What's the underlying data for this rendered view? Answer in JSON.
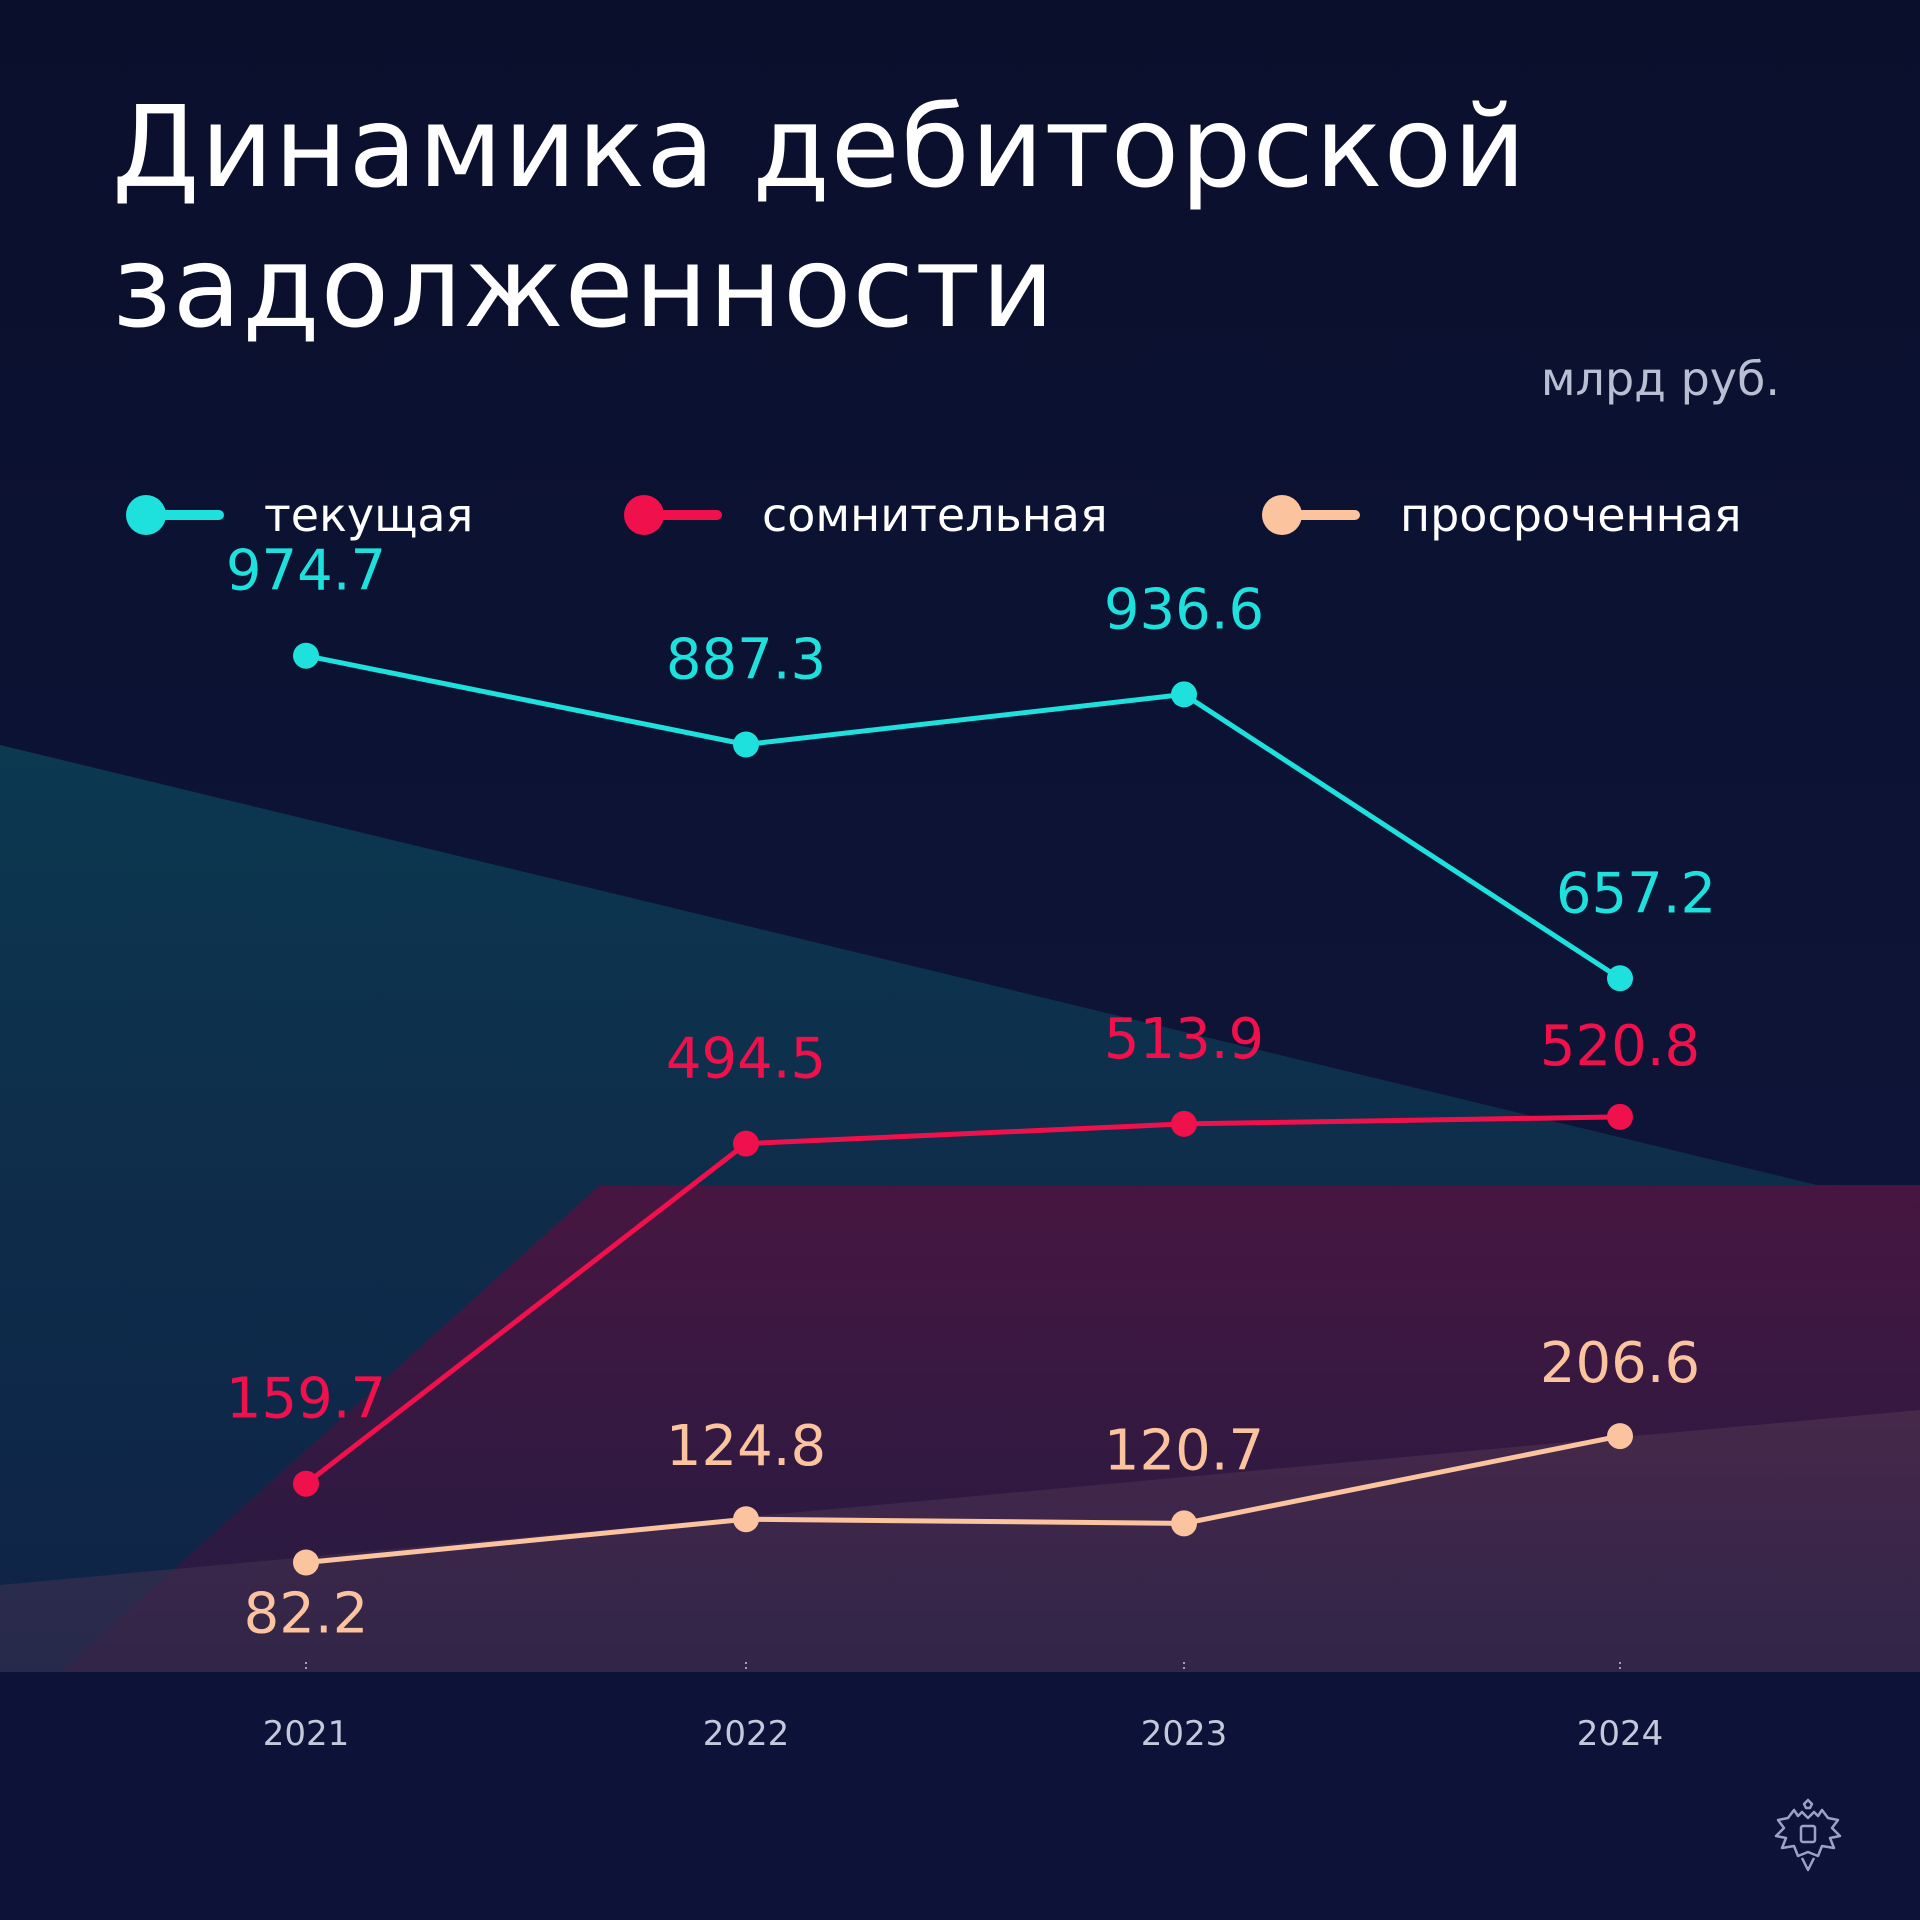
{
  "header": {
    "title_line1": "Динамика дебиторской",
    "title_line2": "задолженности",
    "unit": "млрд руб."
  },
  "legend": [
    {
      "label": "текущая",
      "color": "#1ee0dc"
    },
    {
      "label": "сомнительная",
      "color": "#f0114c"
    },
    {
      "label": "просроченная",
      "color": "#fbc49e"
    }
  ],
  "colors": {
    "background": "#0b1231",
    "current": "#1ee0dc",
    "doubtful": "#f0114c",
    "overdue": "#fbc49e",
    "axis_text": "#c3c8da"
  },
  "icons": [
    "double-headed-eagle-emblem-icon"
  ],
  "chart_data": {
    "type": "line",
    "title": "Динамика дебиторской задолженности",
    "ylabel": "млрд руб.",
    "categories": [
      "2021",
      "2022",
      "2023",
      "2024"
    ],
    "ylim": [
      0,
      1000
    ],
    "grid": false,
    "legend_position": "top",
    "series": [
      {
        "name": "текущая",
        "values": [
          974.7,
          887.3,
          936.6,
          657.2
        ],
        "labels": [
          "974.7",
          "887.3",
          "936.6",
          "657.2"
        ]
      },
      {
        "name": "сомнительная",
        "values": [
          159.7,
          494.5,
          513.9,
          520.8
        ],
        "labels": [
          "159.7",
          "494.5",
          "513.9",
          "520.8"
        ]
      },
      {
        "name": "просроченная",
        "values": [
          82.2,
          124.8,
          120.7,
          206.6
        ],
        "labels": [
          "82.2",
          "124.8",
          "120.7",
          "206.6"
        ]
      }
    ]
  }
}
